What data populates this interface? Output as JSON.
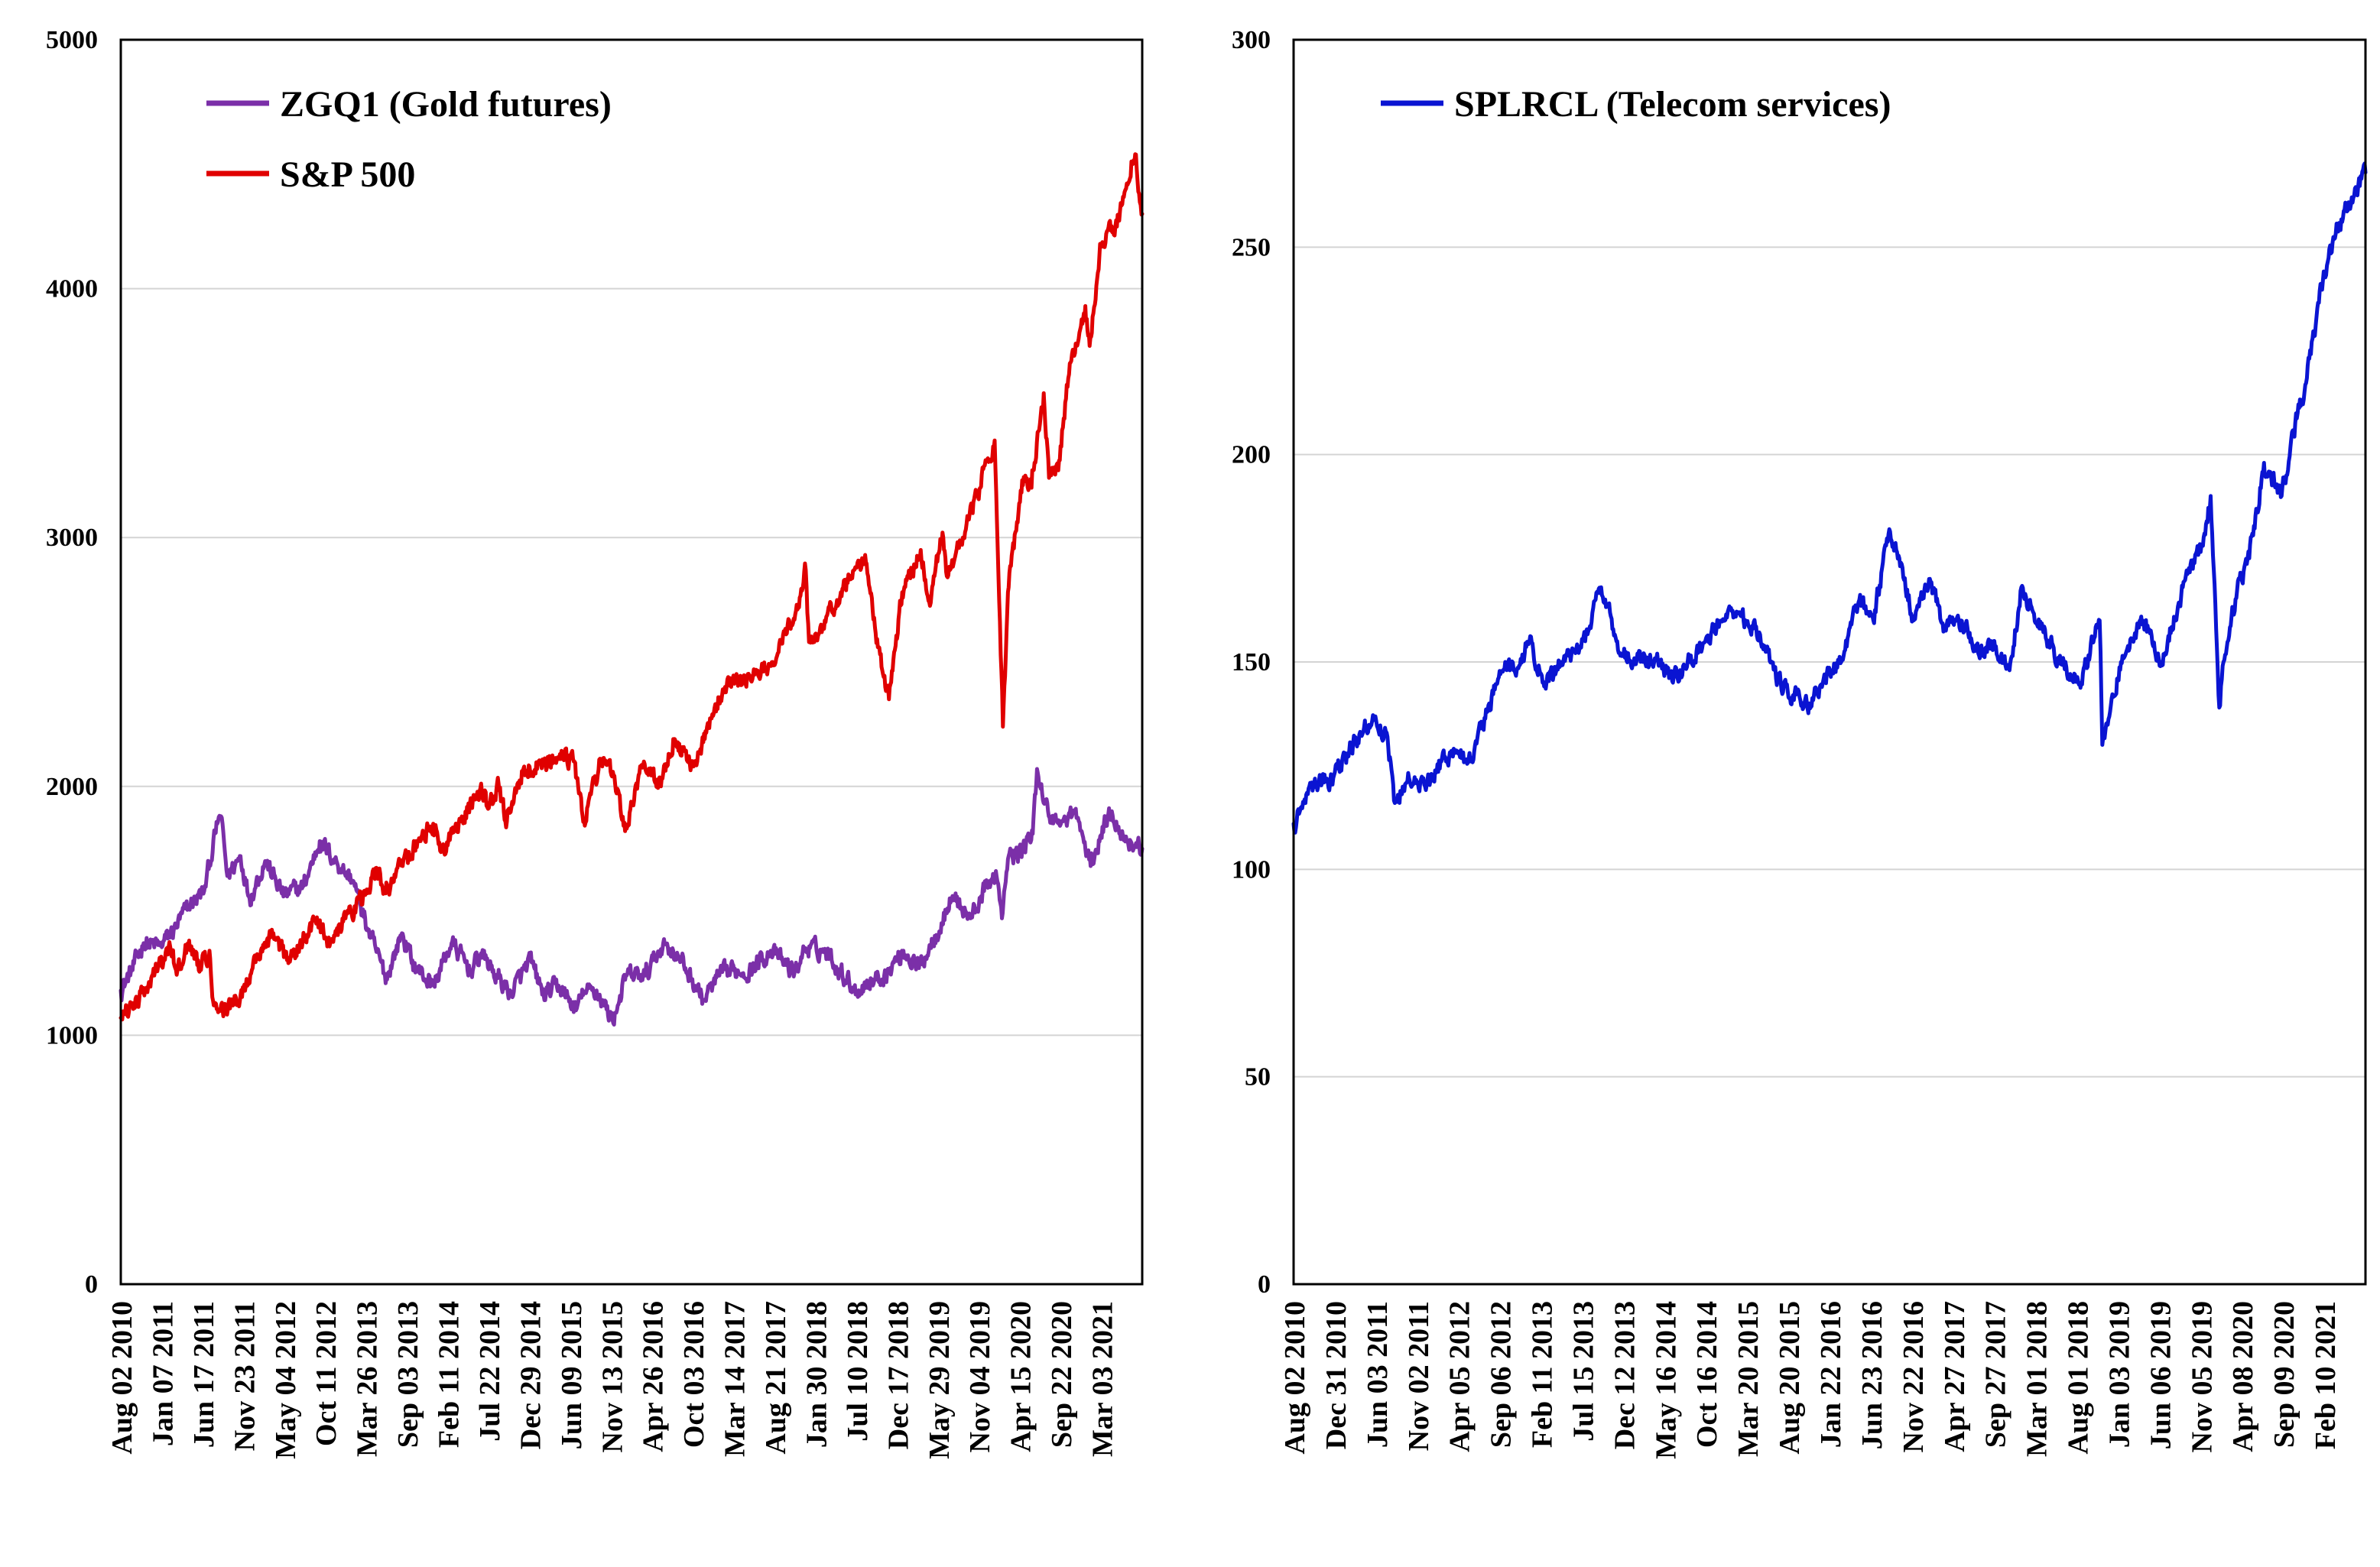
{
  "chart_data": [
    {
      "type": "line",
      "title": "",
      "xlabel": "",
      "ylabel": "",
      "ylim": [
        0,
        5000
      ],
      "yticks": [
        0,
        1000,
        2000,
        3000,
        4000,
        5000
      ],
      "x_range": [
        "2010-08-02",
        "2021-09-30"
      ],
      "x_tick_labels": [
        "Aug 02 2010",
        "Jan 07 2011",
        "Jun 17 2011",
        "Nov 23 2011",
        "May 04 2012",
        "Oct 11 2012",
        "Mar 26 2013",
        "Sep 03 2013",
        "Feb 11 2014",
        "Jul 22 2014",
        "Dec 29 2014",
        "Jun 09 2015",
        "Nov 13 2015",
        "Apr 26 2016",
        "Oct 03 2016",
        "Mar 14 2017",
        "Aug 21 2017",
        "Jan 30 2018",
        "Jul 10 2018",
        "Dec 17 2018",
        "May 29 2019",
        "Nov 04 2019",
        "Apr 15 2020",
        "Sep 22 2020",
        "Mar 03 2021"
      ],
      "legend_position": "top-left",
      "series": [
        {
          "name": "ZGQ1 (Gold futures)",
          "color": "#7B2FA8",
          "x": [
            "2010-08-02",
            "2010-09-15",
            "2010-11-01",
            "2011-01-07",
            "2011-03-01",
            "2011-05-01",
            "2011-07-01",
            "2011-08-22",
            "2011-09-06",
            "2011-10-01",
            "2011-11-23",
            "2011-12-29",
            "2012-02-29",
            "2012-05-15",
            "2012-08-01",
            "2012-10-04",
            "2012-12-31",
            "2013-02-15",
            "2013-04-15",
            "2013-06-27",
            "2013-08-28",
            "2013-10-15",
            "2013-12-31",
            "2014-03-14",
            "2014-06-01",
            "2014-07-10",
            "2014-09-15",
            "2014-11-06",
            "2015-01-22",
            "2015-03-17",
            "2015-05-15",
            "2015-07-24",
            "2015-08-24",
            "2015-10-14",
            "2015-12-17",
            "2016-02-11",
            "2016-04-26",
            "2016-07-06",
            "2016-08-15",
            "2016-10-03",
            "2016-12-15",
            "2017-02-15",
            "2017-04-15",
            "2017-06-15",
            "2017-09-08",
            "2017-12-12",
            "2018-01-25",
            "2018-04-15",
            "2018-06-15",
            "2018-08-16",
            "2018-10-15",
            "2018-12-17",
            "2019-02-20",
            "2019-04-23",
            "2019-06-25",
            "2019-08-15",
            "2019-09-04",
            "2019-11-15",
            "2020-01-08",
            "2020-02-24",
            "2020-03-19",
            "2020-04-15",
            "2020-05-25",
            "2020-07-20",
            "2020-08-06",
            "2020-09-22",
            "2020-11-15",
            "2021-01-05",
            "2021-03-08",
            "2021-05-15",
            "2021-06-01",
            "2021-07-15",
            "2021-08-15",
            "2021-09-30"
          ],
          "values": [
            1180,
            1260,
            1370,
            1360,
            1420,
            1520,
            1580,
            1850,
            1880,
            1640,
            1720,
            1550,
            1700,
            1560,
            1600,
            1780,
            1670,
            1620,
            1420,
            1230,
            1410,
            1280,
            1200,
            1370,
            1260,
            1330,
            1230,
            1170,
            1300,
            1160,
            1200,
            1100,
            1170,
            1180,
            1060,
            1240,
            1240,
            1370,
            1340,
            1270,
            1140,
            1240,
            1260,
            1260,
            1340,
            1250,
            1350,
            1340,
            1260,
            1180,
            1220,
            1250,
            1340,
            1270,
            1400,
            1510,
            1560,
            1470,
            1580,
            1660,
            1470,
            1720,
            1730,
            1810,
            2070,
            1880,
            1860,
            1900,
            1680,
            1880,
            1900,
            1800,
            1780,
            1750
          ]
        },
        {
          "name": "S&P 500",
          "color": "#E00000",
          "x": [
            "2010-08-02",
            "2010-09-15",
            "2010-11-01",
            "2011-01-07",
            "2011-02-18",
            "2011-03-16",
            "2011-04-29",
            "2011-06-15",
            "2011-07-22",
            "2011-08-08",
            "2011-10-03",
            "2011-11-23",
            "2012-02-15",
            "2012-04-02",
            "2012-06-01",
            "2012-09-14",
            "2012-11-15",
            "2013-01-15",
            "2013-03-26",
            "2013-05-21",
            "2013-06-24",
            "2013-09-18",
            "2013-12-31",
            "2014-02-03",
            "2014-04-15",
            "2014-07-22",
            "2014-08-07",
            "2014-09-18",
            "2014-10-15",
            "2014-12-29",
            "2015-03-15",
            "2015-05-21",
            "2015-07-15",
            "2015-08-25",
            "2015-11-03",
            "2015-12-15",
            "2016-02-11",
            "2016-04-20",
            "2016-06-27",
            "2016-08-15",
            "2016-11-04",
            "2017-03-01",
            "2017-06-15",
            "2017-09-15",
            "2017-12-15",
            "2018-01-26",
            "2018-02-08",
            "2018-04-15",
            "2018-06-15",
            "2018-09-20",
            "2018-10-29",
            "2018-12-24",
            "2019-02-15",
            "2019-04-30",
            "2019-06-03",
            "2019-07-26",
            "2019-08-15",
            "2019-10-15",
            "2020-02-19",
            "2020-03-23",
            "2020-04-15",
            "2020-06-08",
            "2020-07-15",
            "2020-09-02",
            "2020-09-23",
            "2020-10-30",
            "2020-12-15",
            "2021-02-15",
            "2021-03-04",
            "2021-04-15",
            "2021-06-15",
            "2021-08-15",
            "2021-09-02",
            "2021-09-30"
          ],
          "values": [
            1070,
            1120,
            1190,
            1280,
            1340,
            1260,
            1360,
            1270,
            1340,
            1120,
            1100,
            1160,
            1350,
            1410,
            1290,
            1460,
            1370,
            1470,
            1560,
            1670,
            1570,
            1720,
            1850,
            1740,
            1870,
            1980,
            1910,
            2010,
            1860,
            2080,
            2100,
            2130,
            2100,
            1870,
            2110,
            2040,
            1830,
            2100,
            2000,
            2190,
            2080,
            2390,
            2440,
            2500,
            2690,
            2870,
            2580,
            2660,
            2780,
            2930,
            2640,
            2350,
            2780,
            2950,
            2740,
            3020,
            2840,
            3000,
            3390,
            2240,
            2800,
            3230,
            3200,
            3580,
            3240,
            3270,
            3700,
            3930,
            3770,
            4180,
            4250,
            4450,
            4540,
            4300
          ]
        }
      ]
    },
    {
      "type": "line",
      "title": "",
      "xlabel": "",
      "ylabel": "",
      "ylim": [
        0,
        300
      ],
      "yticks": [
        0,
        50,
        100,
        150,
        200,
        250,
        300
      ],
      "x_range": [
        "2010-08-02",
        "2021-09-30"
      ],
      "x_tick_labels": [
        "Aug 02 2010",
        "Dec 31 2010",
        "Jun 03 2011",
        "Nov 02 2011",
        "Apr 05 2012",
        "Sep 06 2012",
        "Feb 11 2013",
        "Jul 15 2013",
        "Dec 12 2013",
        "May 16 2014",
        "Oct 16 2014",
        "Mar 20 2015",
        "Aug 20 2015",
        "Jan 22 2016",
        "Jun 23 2016",
        "Nov 22 2016",
        "Apr 27 2017",
        "Sep 27 2017",
        "Mar 01 2018",
        "Aug 01 2018",
        "Jan 03 2019",
        "Jun 06 2019",
        "Nov 05 2019",
        "Apr 08 2020",
        "Sep 09 2020",
        "Feb 10 2021"
      ],
      "legend_position": "top-left",
      "series": [
        {
          "name": "SPLRCL (Telecom services)",
          "color": "#0A14D2",
          "x": [
            "2010-08-02",
            "2010-10-01",
            "2010-12-31",
            "2011-02-15",
            "2011-04-15",
            "2011-06-03",
            "2011-07-25",
            "2011-08-22",
            "2011-10-15",
            "2011-12-15",
            "2012-02-15",
            "2012-04-05",
            "2012-06-04",
            "2012-08-15",
            "2012-10-15",
            "2012-11-16",
            "2013-01-15",
            "2013-03-15",
            "2013-05-15",
            "2013-06-24",
            "2013-08-15",
            "2013-10-15",
            "2013-12-12",
            "2014-02-15",
            "2014-05-16",
            "2014-07-15",
            "2014-09-15",
            "2014-11-15",
            "2015-01-15",
            "2015-03-20",
            "2015-05-15",
            "2015-07-15",
            "2015-08-20",
            "2015-10-15",
            "2015-12-15",
            "2016-02-11",
            "2016-04-15",
            "2016-06-23",
            "2016-08-15",
            "2016-10-15",
            "2016-11-22",
            "2017-01-15",
            "2017-03-15",
            "2017-05-15",
            "2017-07-15",
            "2017-09-27",
            "2017-11-15",
            "2018-01-15",
            "2018-03-01",
            "2018-05-15",
            "2018-08-01",
            "2018-10-15",
            "2018-12-24",
            "2019-01-03",
            "2019-03-15",
            "2019-06-06",
            "2019-08-15",
            "2019-11-05",
            "2020-01-15",
            "2020-02-19",
            "2020-03-23",
            "2020-04-08",
            "2020-06-08",
            "2020-07-15",
            "2020-09-09",
            "2020-11-15",
            "2021-01-15",
            "2021-02-10",
            "2021-04-15",
            "2021-06-15",
            "2021-08-15",
            "2021-09-30"
          ],
          "values": [
            111,
            120,
            122,
            128,
            133,
            136,
            132,
            116,
            122,
            120,
            126,
            128,
            126,
            140,
            150,
            148,
            155,
            145,
            150,
            152,
            155,
            168,
            155,
            150,
            152,
            145,
            150,
            155,
            160,
            162,
            158,
            153,
            145,
            142,
            140,
            147,
            150,
            165,
            160,
            182,
            175,
            160,
            170,
            158,
            160,
            152,
            155,
            148,
            168,
            158,
            150,
            145,
            160,
            130,
            150,
            160,
            150,
            168,
            178,
            190,
            139,
            150,
            170,
            175,
            198,
            190,
            210,
            215,
            240,
            255,
            262,
            268
          ]
        }
      ]
    }
  ]
}
